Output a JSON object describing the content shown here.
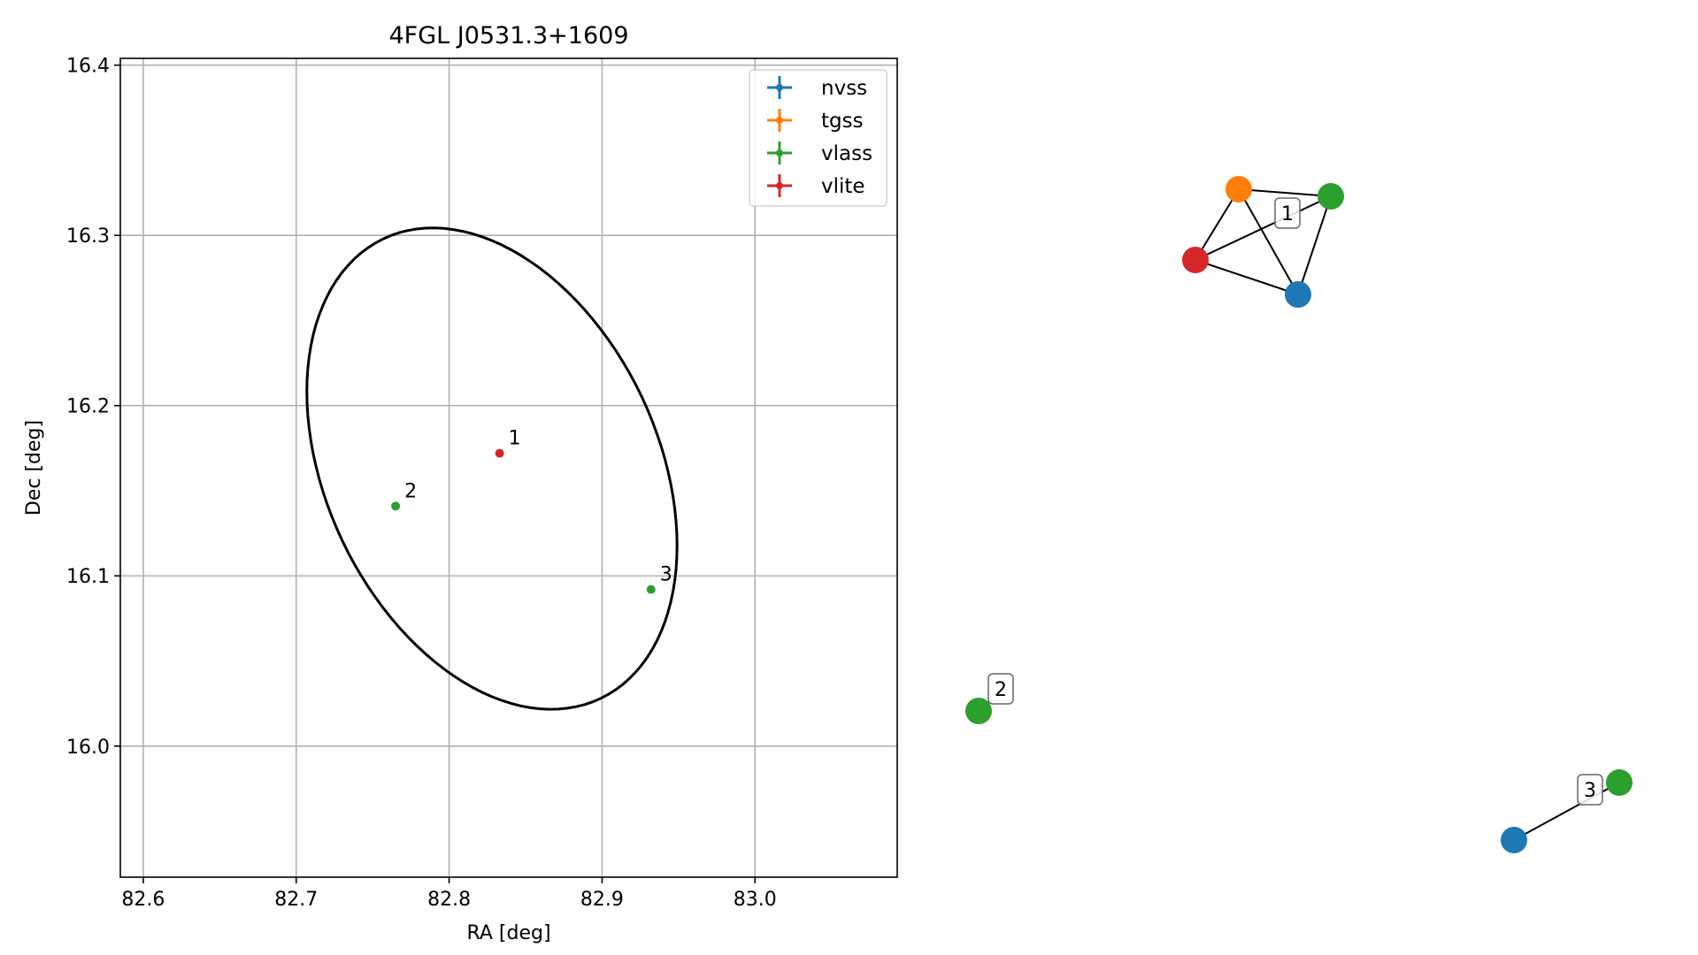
{
  "chart_data": [
    {
      "type": "scatter",
      "title": "4FGL J0531.3+1609",
      "xlabel": "RA [deg]",
      "ylabel": "Dec [deg]",
      "xlim": [
        82.585,
        83.093
      ],
      "ylim": [
        15.923,
        16.404
      ],
      "xticks": [
        82.6,
        82.7,
        82.8,
        82.9,
        83.0
      ],
      "xtick_labels": [
        "82.6",
        "82.7",
        "82.8",
        "82.9",
        "83.0"
      ],
      "yticks": [
        16.0,
        16.1,
        16.2,
        16.3,
        16.4
      ],
      "ytick_labels": [
        "16.0",
        "16.1",
        "16.2",
        "16.3",
        "16.4"
      ],
      "grid": true,
      "legend_position": "top-right",
      "series": [
        {
          "name": "nvss",
          "color": "#1f77b4",
          "points": []
        },
        {
          "name": "tgss",
          "color": "#ff7f0e",
          "points": []
        },
        {
          "name": "vlass",
          "color": "#2ca02c",
          "points": [
            {
              "x": 82.765,
              "y": 16.141
            },
            {
              "x": 82.932,
              "y": 16.092
            }
          ]
        },
        {
          "name": "vlite",
          "color": "#d62728",
          "points": [
            {
              "x": 82.833,
              "y": 16.172
            }
          ]
        }
      ],
      "point_labels": [
        {
          "text": "1",
          "x": 82.833,
          "y": 16.172
        },
        {
          "text": "2",
          "x": 82.765,
          "y": 16.141
        },
        {
          "text": "3",
          "x": 82.932,
          "y": 16.092
        }
      ],
      "ellipse": {
        "center": [
          82.828,
          16.163
        ],
        "semi_major": 0.153,
        "semi_minor": 0.106,
        "angle_deg": 122
      }
    },
    {
      "type": "network",
      "groups": [
        {
          "label": "1",
          "nodes": [
            {
              "series": "tgss",
              "color": "#ff7f0e"
            },
            {
              "series": "vlass",
              "color": "#2ca02c"
            },
            {
              "series": "vlite",
              "color": "#d62728"
            },
            {
              "series": "nvss",
              "color": "#1f77b4"
            }
          ],
          "edges": [
            [
              0,
              1
            ],
            [
              0,
              2
            ],
            [
              0,
              3
            ],
            [
              1,
              2
            ],
            [
              1,
              3
            ],
            [
              2,
              3
            ]
          ]
        },
        {
          "label": "2",
          "nodes": [
            {
              "series": "vlass",
              "color": "#2ca02c"
            }
          ],
          "edges": []
        },
        {
          "label": "3",
          "nodes": [
            {
              "series": "vlass",
              "color": "#2ca02c"
            },
            {
              "series": "nvss",
              "color": "#1f77b4"
            }
          ],
          "edges": [
            [
              0,
              1
            ]
          ]
        }
      ]
    }
  ]
}
